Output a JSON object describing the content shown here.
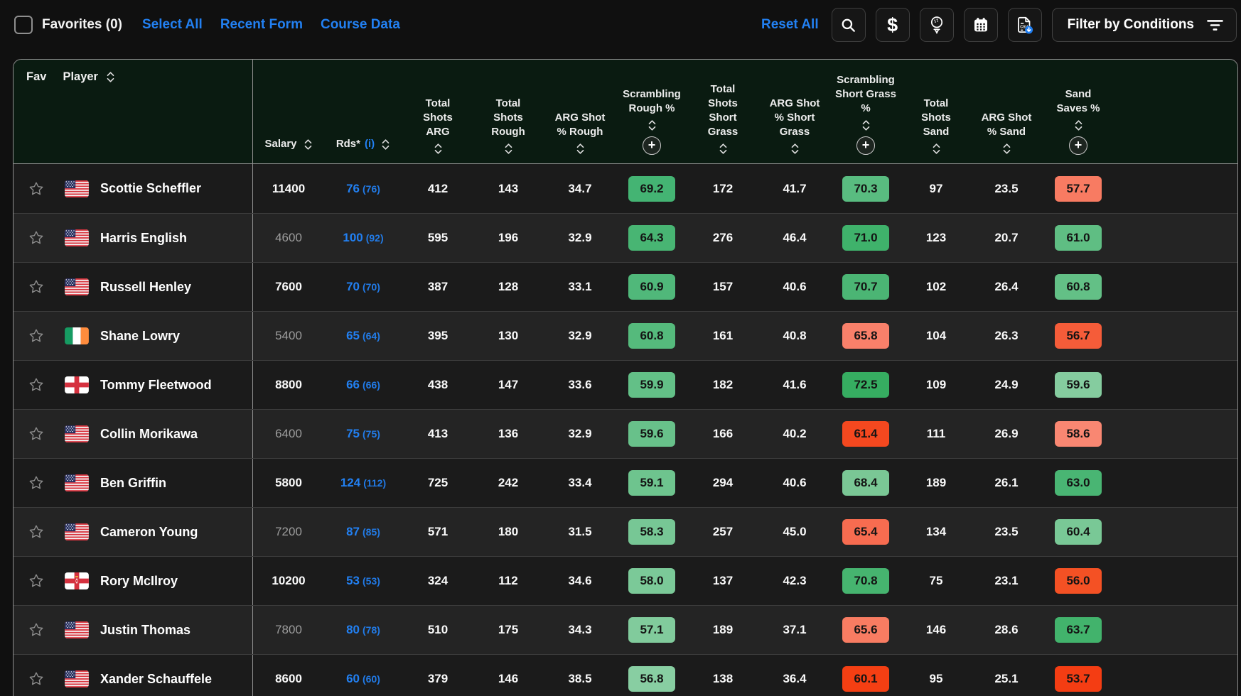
{
  "toolbar": {
    "favorites_label": "Favorites (0)",
    "links": [
      {
        "label": "Select All"
      },
      {
        "label": "Recent Form"
      },
      {
        "label": "Course Data"
      }
    ],
    "reset_label": "Reset All",
    "icon_buttons": [
      "search",
      "salary-dollar",
      "golf-ball-tee",
      "calendar",
      "csv-download"
    ],
    "filter_label": "Filter by Conditions"
  },
  "colors": {
    "accent_blue": "#2280f2",
    "header_bg": "#0a1b11",
    "row_bg": "#1b1b1b",
    "row_alt_bg": "#242424",
    "badge_text": "#141414"
  },
  "table": {
    "fav_header": "Fav",
    "player_header": "Player",
    "columns": [
      {
        "id": "salary",
        "lines": [
          "Salary"
        ],
        "sort": true,
        "inline": true
      },
      {
        "id": "rds",
        "lines": [
          "Rds*"
        ],
        "info": "(i)",
        "sort": true,
        "inline": true
      },
      {
        "id": "total-shots-arg",
        "lines": [
          "Total",
          "Shots",
          "ARG"
        ],
        "sort": true
      },
      {
        "id": "total-shots-rough",
        "lines": [
          "Total",
          "Shots",
          "Rough"
        ],
        "sort": true
      },
      {
        "id": "arg-shot-pct-rough",
        "lines": [
          "ARG Shot",
          "% Rough"
        ],
        "sort": true
      },
      {
        "id": "scrambling-rough-pct",
        "lines": [
          "Scrambling",
          "Rough %"
        ],
        "sort": true,
        "plus": true
      },
      {
        "id": "total-shots-short-grass",
        "lines": [
          "Total",
          "Shots",
          "Short",
          "Grass"
        ],
        "sort": true
      },
      {
        "id": "arg-shot-pct-short-grass",
        "lines": [
          "ARG Shot",
          "% Short",
          "Grass"
        ],
        "sort": true
      },
      {
        "id": "scrambling-short-grass-pct",
        "lines": [
          "Scrambling",
          "Short Grass",
          "%"
        ],
        "sort": true,
        "plus": true
      },
      {
        "id": "total-shots-sand",
        "lines": [
          "Total",
          "Shots",
          "Sand"
        ],
        "sort": true
      },
      {
        "id": "arg-shot-pct-sand",
        "lines": [
          "ARG Shot",
          "% Sand"
        ],
        "sort": true
      },
      {
        "id": "sand-saves-pct",
        "lines": [
          "Sand",
          "Saves %"
        ],
        "sort": true,
        "plus": true
      }
    ],
    "rows": [
      {
        "flag": "us",
        "name": "Scottie Scheffler",
        "salary": "11400",
        "muted": false,
        "rds": "76",
        "rds_alt": "(76)",
        "stats": [
          {
            "v": "412"
          },
          {
            "v": "143"
          },
          {
            "v": "34.7"
          },
          {
            "v": "69.2",
            "bg": "#44b473"
          },
          {
            "v": "172"
          },
          {
            "v": "41.7"
          },
          {
            "v": "70.3",
            "bg": "#59bc80"
          },
          {
            "v": "97"
          },
          {
            "v": "23.5"
          },
          {
            "v": "57.7",
            "bg": "#f87b62"
          }
        ]
      },
      {
        "flag": "us",
        "name": "Harris English",
        "salary": "4600",
        "muted": true,
        "rds": "100",
        "rds_alt": "(92)",
        "stats": [
          {
            "v": "595"
          },
          {
            "v": "196"
          },
          {
            "v": "32.9"
          },
          {
            "v": "64.3",
            "bg": "#48b573"
          },
          {
            "v": "276"
          },
          {
            "v": "46.4"
          },
          {
            "v": "71.0",
            "bg": "#3fb26b"
          },
          {
            "v": "123"
          },
          {
            "v": "20.7"
          },
          {
            "v": "61.0",
            "bg": "#5fbe83"
          }
        ]
      },
      {
        "flag": "us",
        "name": "Russell Henley",
        "salary": "7600",
        "muted": false,
        "rds": "70",
        "rds_alt": "(70)",
        "stats": [
          {
            "v": "387"
          },
          {
            "v": "128"
          },
          {
            "v": "33.1"
          },
          {
            "v": "60.9",
            "bg": "#50b87a"
          },
          {
            "v": "157"
          },
          {
            "v": "40.6"
          },
          {
            "v": "70.7",
            "bg": "#4bb574"
          },
          {
            "v": "102"
          },
          {
            "v": "26.4"
          },
          {
            "v": "60.8",
            "bg": "#63c086"
          }
        ]
      },
      {
        "flag": "ie",
        "name": "Shane Lowry",
        "salary": "5400",
        "muted": true,
        "rds": "65",
        "rds_alt": "(64)",
        "stats": [
          {
            "v": "395"
          },
          {
            "v": "130"
          },
          {
            "v": "32.9"
          },
          {
            "v": "60.8",
            "bg": "#55ba7c"
          },
          {
            "v": "161"
          },
          {
            "v": "40.8"
          },
          {
            "v": "65.8",
            "bg": "#f8806a"
          },
          {
            "v": "104"
          },
          {
            "v": "26.3"
          },
          {
            "v": "56.7",
            "bg": "#f55c39"
          }
        ]
      },
      {
        "flag": "eng",
        "name": "Tommy Fleetwood",
        "salary": "8800",
        "muted": false,
        "rds": "66",
        "rds_alt": "(66)",
        "stats": [
          {
            "v": "438"
          },
          {
            "v": "147"
          },
          {
            "v": "33.6"
          },
          {
            "v": "59.9",
            "bg": "#63c087"
          },
          {
            "v": "182"
          },
          {
            "v": "41.6"
          },
          {
            "v": "72.5",
            "bg": "#36ad61"
          },
          {
            "v": "109"
          },
          {
            "v": "24.9"
          },
          {
            "v": "59.6",
            "bg": "#85cc9f"
          }
        ]
      },
      {
        "flag": "us",
        "name": "Collin Morikawa",
        "salary": "6400",
        "muted": true,
        "rds": "75",
        "rds_alt": "(75)",
        "stats": [
          {
            "v": "413"
          },
          {
            "v": "136"
          },
          {
            "v": "32.9"
          },
          {
            "v": "59.6",
            "bg": "#68c18a"
          },
          {
            "v": "166"
          },
          {
            "v": "40.2"
          },
          {
            "v": "61.4",
            "bg": "#f4481f"
          },
          {
            "v": "111"
          },
          {
            "v": "26.9"
          },
          {
            "v": "58.6",
            "bg": "#f98772"
          }
        ]
      },
      {
        "flag": "us",
        "name": "Ben Griffin",
        "salary": "5800",
        "muted": false,
        "rds": "124",
        "rds_alt": "(112)",
        "stats": [
          {
            "v": "725"
          },
          {
            "v": "242"
          },
          {
            "v": "33.4"
          },
          {
            "v": "59.1",
            "bg": "#6ec48e"
          },
          {
            "v": "294"
          },
          {
            "v": "40.6"
          },
          {
            "v": "68.4",
            "bg": "#7ac795"
          },
          {
            "v": "189"
          },
          {
            "v": "26.1"
          },
          {
            "v": "63.0",
            "bg": "#49b573"
          }
        ]
      },
      {
        "flag": "us",
        "name": "Cameron Young",
        "salary": "7200",
        "muted": true,
        "rds": "87",
        "rds_alt": "(85)",
        "stats": [
          {
            "v": "571"
          },
          {
            "v": "180"
          },
          {
            "v": "31.5"
          },
          {
            "v": "58.3",
            "bg": "#77c795"
          },
          {
            "v": "257"
          },
          {
            "v": "45.0"
          },
          {
            "v": "65.4",
            "bg": "#f76c50"
          },
          {
            "v": "134"
          },
          {
            "v": "23.5"
          },
          {
            "v": "60.4",
            "bg": "#79c896"
          }
        ]
      },
      {
        "flag": "nir",
        "name": "Rory McIlroy",
        "salary": "10200",
        "muted": false,
        "rds": "53",
        "rds_alt": "(53)",
        "stats": [
          {
            "v": "324"
          },
          {
            "v": "112"
          },
          {
            "v": "34.6"
          },
          {
            "v": "58.0",
            "bg": "#7bc998"
          },
          {
            "v": "137"
          },
          {
            "v": "42.3"
          },
          {
            "v": "70.8",
            "bg": "#46b46f"
          },
          {
            "v": "75"
          },
          {
            "v": "23.1"
          },
          {
            "v": "56.0",
            "bg": "#f45124"
          }
        ]
      },
      {
        "flag": "us",
        "name": "Justin Thomas",
        "salary": "7800",
        "muted": true,
        "rds": "80",
        "rds_alt": "(78)",
        "stats": [
          {
            "v": "510"
          },
          {
            "v": "175"
          },
          {
            "v": "34.3"
          },
          {
            "v": "57.1",
            "bg": "#81cb9c"
          },
          {
            "v": "189"
          },
          {
            "v": "37.1"
          },
          {
            "v": "65.6",
            "bg": "#f87c62"
          },
          {
            "v": "146"
          },
          {
            "v": "28.6"
          },
          {
            "v": "63.7",
            "bg": "#42b36c"
          }
        ]
      },
      {
        "flag": "us",
        "name": "Xander Schauffele",
        "salary": "8600",
        "muted": false,
        "rds": "60",
        "rds_alt": "(60)",
        "stats": [
          {
            "v": "379"
          },
          {
            "v": "146"
          },
          {
            "v": "38.5"
          },
          {
            "v": "56.8",
            "bg": "#88cea2"
          },
          {
            "v": "138"
          },
          {
            "v": "36.4"
          },
          {
            "v": "60.1",
            "bg": "#f43f13"
          },
          {
            "v": "95"
          },
          {
            "v": "25.1"
          },
          {
            "v": "53.7",
            "bg": "#f43d13"
          }
        ]
      }
    ]
  }
}
